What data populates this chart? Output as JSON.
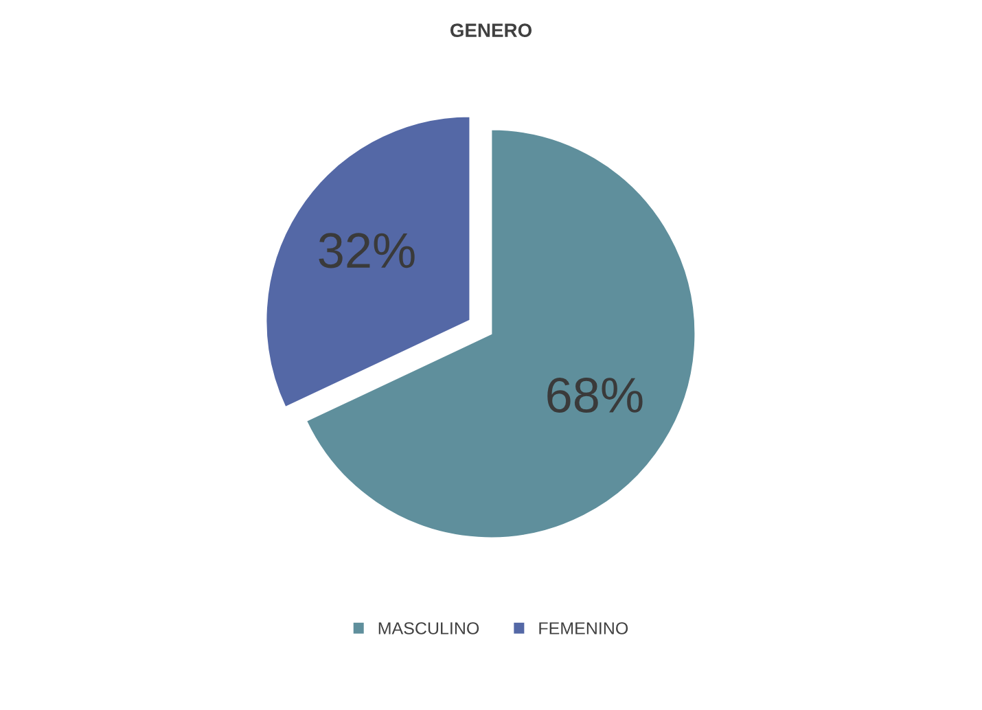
{
  "chart_data": {
    "type": "pie",
    "title": "GENERO",
    "categories": [
      "MASCULINO",
      "FEMENINO"
    ],
    "values": [
      68,
      32
    ],
    "value_labels": [
      "68%",
      "32%"
    ],
    "colors": [
      "#5f8f9c",
      "#5468a6"
    ],
    "legend": "bottom"
  }
}
